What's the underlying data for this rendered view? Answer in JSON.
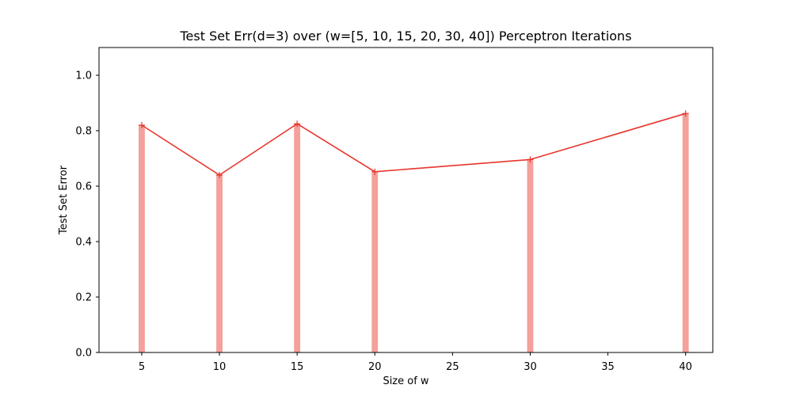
{
  "chart_data": {
    "type": "line",
    "title": "Test Set Err(d=3) over (w=[5, 10, 15, 20, 30, 40]) Perceptron Iterations",
    "xlabel": "Size of w",
    "ylabel": "Test Set Error",
    "xlim": [
      2.25,
      41.75
    ],
    "ylim": [
      0.0,
      1.1
    ],
    "xticks": [
      5,
      10,
      15,
      20,
      25,
      30,
      35,
      40
    ],
    "yticks": [
      0.0,
      0.2,
      0.4,
      0.6,
      0.8,
      1.0
    ],
    "xtick_labels": [
      "5",
      "10",
      "15",
      "20",
      "25",
      "30",
      "35",
      "40"
    ],
    "ytick_labels": [
      "0.0",
      "0.2",
      "0.4",
      "0.6",
      "0.8",
      "1.0"
    ],
    "grid": false,
    "series": [
      {
        "kind": "bar",
        "x": [
          5,
          10,
          15,
          20,
          30,
          40
        ],
        "values": [
          0.82,
          0.64,
          0.825,
          0.652,
          0.696,
          0.862
        ],
        "color": "#f4a09b",
        "bar_width": 0.4
      },
      {
        "kind": "line",
        "marker": "+",
        "x": [
          5,
          10,
          15,
          20,
          30,
          40
        ],
        "values": [
          0.82,
          0.64,
          0.825,
          0.652,
          0.696,
          0.862
        ],
        "color": "#e8352b"
      }
    ]
  }
}
